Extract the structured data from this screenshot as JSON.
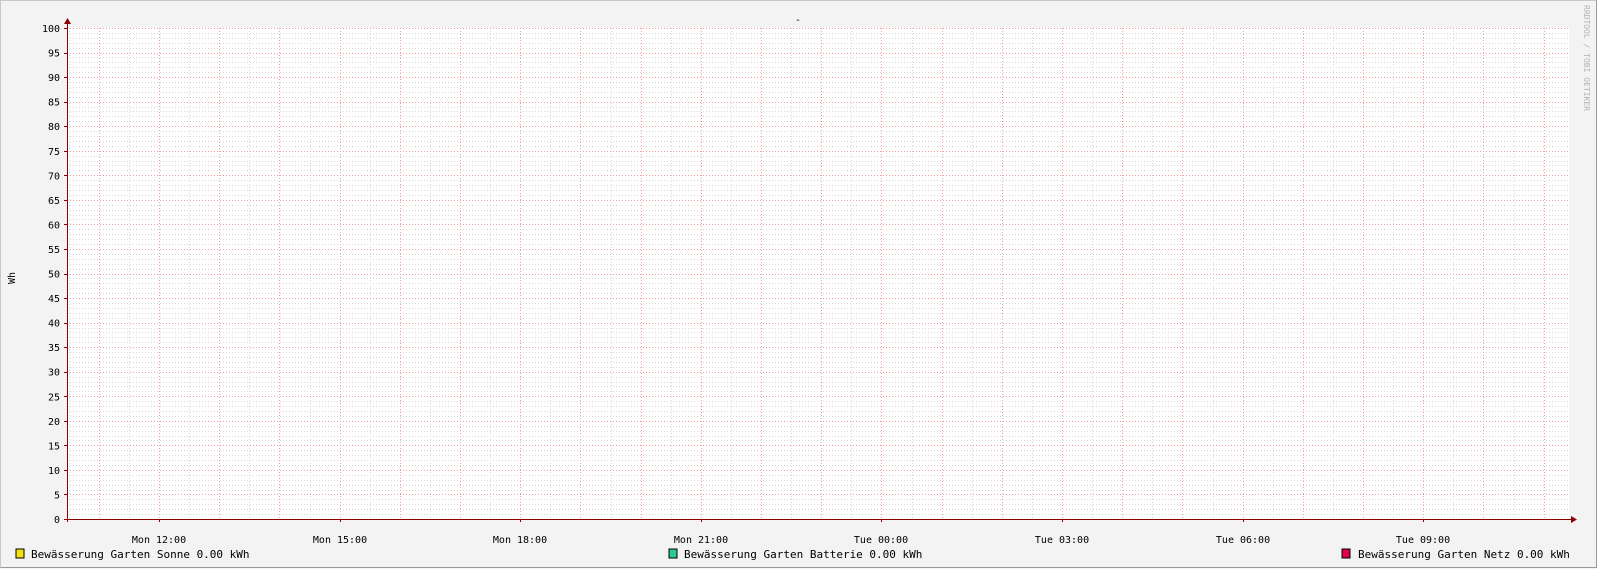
{
  "chart_data": {
    "type": "area",
    "title": "-",
    "ylabel": "Wh",
    "xlabel": "",
    "ylim": [
      0,
      100
    ],
    "y_step": 5,
    "y_ticks": [
      "0",
      "5",
      "10",
      "15",
      "20",
      "25",
      "30",
      "35",
      "40",
      "45",
      "50",
      "55",
      "60",
      "65",
      "70",
      "75",
      "80",
      "85",
      "90",
      "95",
      "100"
    ],
    "x_ticks": [
      "Mon 12:00",
      "Mon 15:00",
      "Mon 18:00",
      "Mon 21:00",
      "Tue 00:00",
      "Tue 03:00",
      "Tue 06:00",
      "Tue 09:00"
    ],
    "grid": true,
    "legend_position": "bottom",
    "series": [
      {
        "name": "Bewässerung Garten Sonne",
        "color": "#f5e010",
        "total": "0.00 kWh",
        "values": []
      },
      {
        "name": "Bewässerung Garten Batterie",
        "color": "#2ec98f",
        "total": "0.00 kWh",
        "values": []
      },
      {
        "name": "Bewässerung Garten Netz",
        "color": "#e0004a",
        "total": "0.00 kWh",
        "values": []
      }
    ]
  },
  "legend": {
    "items": [
      {
        "label": "Bewässerung Garten Sonne 0.00 kWh",
        "color": "#f5e010"
      },
      {
        "label": "Bewässerung Garten Batterie 0.00 kWh",
        "color": "#2ec98f"
      },
      {
        "label": "Bewässerung Garten Netz 0.00 kWh",
        "color": "#e0004a"
      }
    ]
  },
  "watermark": "RRDTOOL / TOBI OETIKER",
  "colors": {
    "background": "#f3f3f3",
    "plot_background": "#ffffff",
    "major_grid": "#f0a0a0",
    "minor_grid": "#d8d8d8",
    "axis": "#8b0000",
    "text": "#000000"
  }
}
